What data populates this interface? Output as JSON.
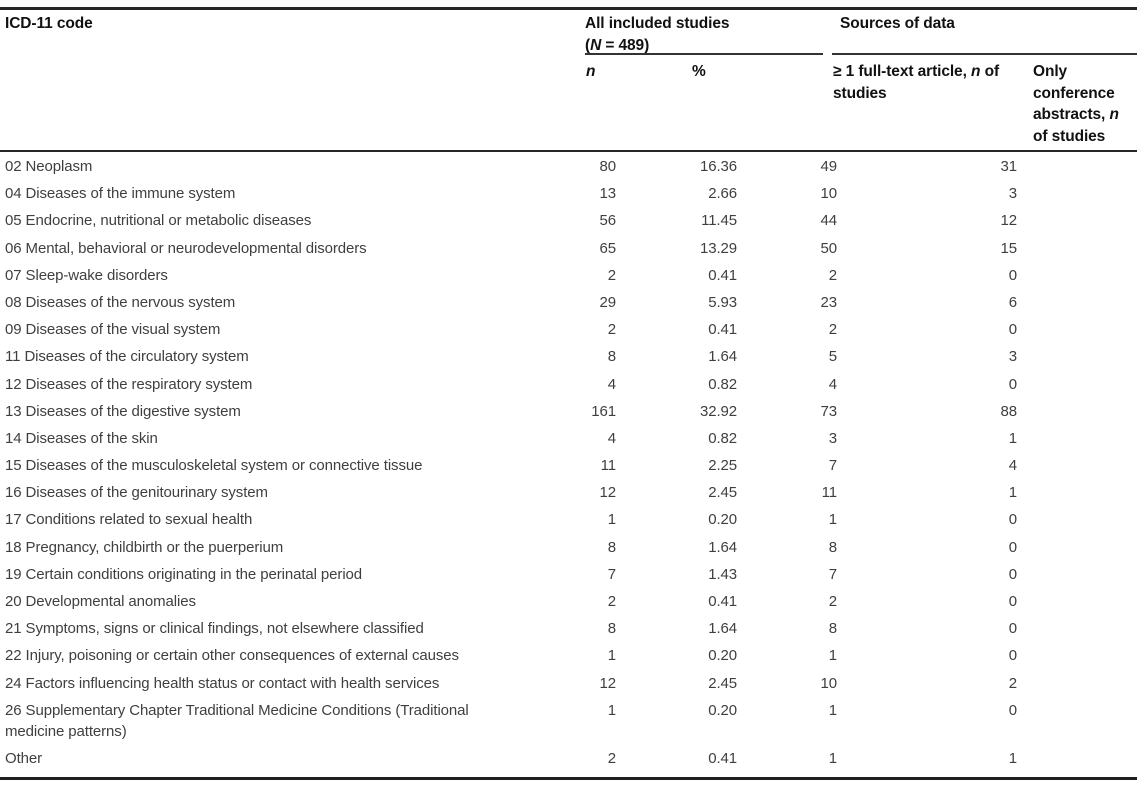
{
  "table": {
    "col1_header": "ICD-11 code",
    "group1": {
      "title": "All included studies",
      "sub_open": "(",
      "sub_n": "N",
      "sub_rest": " = 489)"
    },
    "group2": {
      "title": "Sources of data"
    },
    "subheaders": {
      "n": "n",
      "pct": "%",
      "fulltext_pre": "≥ 1 full-text article, ",
      "fulltext_n": "n",
      "fulltext_post": " of studies",
      "conf_pre": "Only conference abstracts, ",
      "conf_n": "n",
      "conf_post": " of studies"
    },
    "rows": [
      {
        "label": "02 Neoplasm",
        "n": "80",
        "pct": "16.36",
        "fulltext": "49",
        "conference": "31"
      },
      {
        "label": "04 Diseases of the immune system",
        "n": "13",
        "pct": "2.66",
        "fulltext": "10",
        "conference": "3"
      },
      {
        "label": "05 Endocrine, nutritional or metabolic diseases",
        "n": "56",
        "pct": "11.45",
        "fulltext": "44",
        "conference": "12"
      },
      {
        "label": "06 Mental, behavioral or neurodevelopmental disorders",
        "n": "65",
        "pct": "13.29",
        "fulltext": "50",
        "conference": "15"
      },
      {
        "label": "07 Sleep-wake disorders",
        "n": "2",
        "pct": "0.41",
        "fulltext": "2",
        "conference": "0"
      },
      {
        "label": "08 Diseases of the nervous system",
        "n": "29",
        "pct": "5.93",
        "fulltext": "23",
        "conference": "6"
      },
      {
        "label": "09 Diseases of the visual system",
        "n": "2",
        "pct": "0.41",
        "fulltext": "2",
        "conference": "0"
      },
      {
        "label": "11 Diseases of the circulatory system",
        "n": "8",
        "pct": "1.64",
        "fulltext": "5",
        "conference": "3"
      },
      {
        "label": "12 Diseases of the respiratory system",
        "n": "4",
        "pct": "0.82",
        "fulltext": "4",
        "conference": "0"
      },
      {
        "label": "13 Diseases of the digestive system",
        "n": "161",
        "pct": "32.92",
        "fulltext": "73",
        "conference": "88"
      },
      {
        "label": "14 Diseases of the skin",
        "n": "4",
        "pct": "0.82",
        "fulltext": "3",
        "conference": "1"
      },
      {
        "label": "15 Diseases of the musculoskeletal system or connective tissue",
        "n": "11",
        "pct": "2.25",
        "fulltext": "7",
        "conference": "4"
      },
      {
        "label": "16 Diseases of the genitourinary system",
        "n": "12",
        "pct": "2.45",
        "fulltext": "11",
        "conference": "1"
      },
      {
        "label": "17 Conditions related to sexual health",
        "n": "1",
        "pct": "0.20",
        "fulltext": "1",
        "conference": "0"
      },
      {
        "label": "18 Pregnancy, childbirth or the puerperium",
        "n": "8",
        "pct": "1.64",
        "fulltext": "8",
        "conference": "0"
      },
      {
        "label": "19 Certain conditions originating in the perinatal period",
        "n": "7",
        "pct": "1.43",
        "fulltext": "7",
        "conference": "0"
      },
      {
        "label": "20 Developmental anomalies",
        "n": "2",
        "pct": "0.41",
        "fulltext": "2",
        "conference": "0"
      },
      {
        "label": "21 Symptoms, signs or clinical findings, not elsewhere classified",
        "n": "8",
        "pct": "1.64",
        "fulltext": "8",
        "conference": "0"
      },
      {
        "label": "22 Injury, poisoning or certain other consequences of external causes",
        "n": "1",
        "pct": "0.20",
        "fulltext": "1",
        "conference": "0"
      },
      {
        "label": "24 Factors influencing health status or contact with health services",
        "n": "12",
        "pct": "2.45",
        "fulltext": "10",
        "conference": "2"
      },
      {
        "label": "26 Supplementary Chapter Traditional Medicine Conditions (Traditional medicine patterns)",
        "n": "1",
        "pct": "0.20",
        "fulltext": "1",
        "conference": "0"
      },
      {
        "label": "Other",
        "n": "2",
        "pct": "0.41",
        "fulltext": "1",
        "conference": "1"
      }
    ]
  }
}
